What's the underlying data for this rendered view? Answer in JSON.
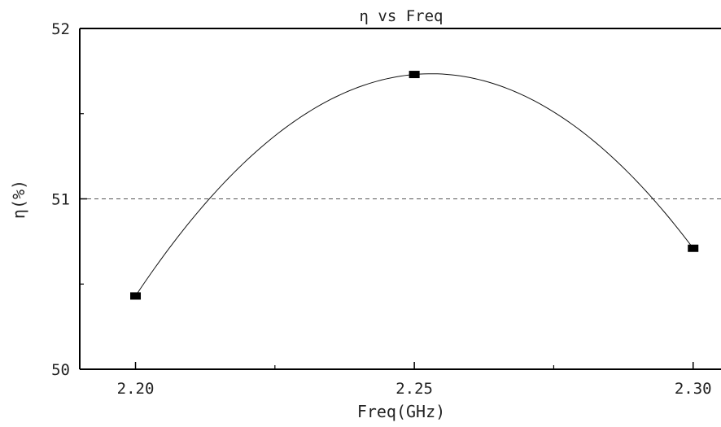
{
  "chart_data": {
    "type": "line",
    "title": "η  vs Freq",
    "xlabel": "Freq(GHz)",
    "ylabel": "η(%)",
    "x": [
      2.2,
      2.25,
      2.3
    ],
    "x_tick_labels": [
      "2.20",
      "2.25",
      "2.30"
    ],
    "y_tick_labels": [
      "50",
      "51",
      "52"
    ],
    "xlim": [
      2.19,
      2.305
    ],
    "ylim": [
      50,
      52
    ],
    "reference_line": {
      "y": 51,
      "style": "dashed"
    },
    "series": [
      {
        "x": [
          2.2,
          2.25,
          2.3
        ],
        "values": [
          50.43,
          51.73,
          50.71
        ],
        "marker": "square",
        "smooth": true
      }
    ],
    "grid": false,
    "colors": {
      "line": "#111111",
      "marker": "#000000",
      "axis": "#000000",
      "reference": "#555555"
    }
  }
}
